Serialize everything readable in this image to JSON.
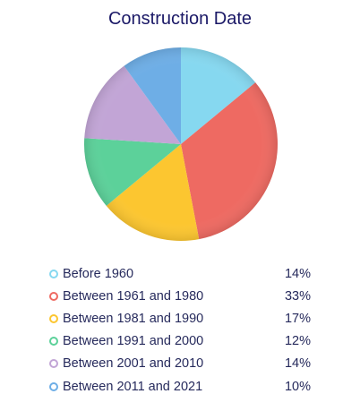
{
  "chart_data": {
    "type": "pie",
    "title": "Construction Date",
    "categories": [
      "Before 1960",
      "Between 1961 and 1980",
      "Between 1981 and 1990",
      "Between 1991 and 2000",
      "Between 2001 and 2010",
      "Between 2011 and 2021"
    ],
    "values": [
      14,
      33,
      17,
      12,
      14,
      10
    ],
    "labels": [
      "14%",
      "33%",
      "17%",
      "12%",
      "14%",
      "10%"
    ],
    "colors": [
      "#86d8f0",
      "#ee6a62",
      "#fcc630",
      "#5cd19a",
      "#c2a5d6",
      "#6eaee6"
    ],
    "legend_position": "bottom"
  }
}
